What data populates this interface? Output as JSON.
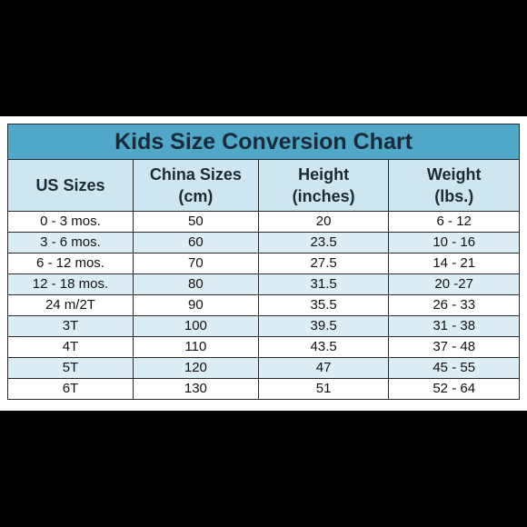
{
  "title": "Kids Size Conversion Chart",
  "headers": [
    {
      "line1": "US Sizes",
      "line2": ""
    },
    {
      "line1": "China Sizes",
      "line2": "(cm)"
    },
    {
      "line1": "Height",
      "line2": "(inches)"
    },
    {
      "line1": "Weight",
      "line2": "(lbs.)"
    }
  ],
  "rows": [
    [
      "0 - 3 mos.",
      "50",
      "20",
      "6 - 12"
    ],
    [
      "3 - 6 mos.",
      "60",
      "23.5",
      "10 - 16"
    ],
    [
      "6 - 12 mos.",
      "70",
      "27.5",
      "14 - 21"
    ],
    [
      "12 - 18 mos.",
      "80",
      "31.5",
      "20 -27"
    ],
    [
      "24 m/2T",
      "90",
      "35.5",
      "26 - 33"
    ],
    [
      "3T",
      "100",
      "39.5",
      "31 - 38"
    ],
    [
      "4T",
      "110",
      "43.5",
      "37 - 48"
    ],
    [
      "5T",
      "120",
      "47",
      "45 - 55"
    ],
    [
      "6T",
      "130",
      "51",
      "52 - 64"
    ]
  ],
  "colors": {
    "title_bg": "#4fa8c8",
    "header_bg": "#cde6f0",
    "alt_row_bg": "#dbeef5",
    "page_bg": "#000000"
  }
}
